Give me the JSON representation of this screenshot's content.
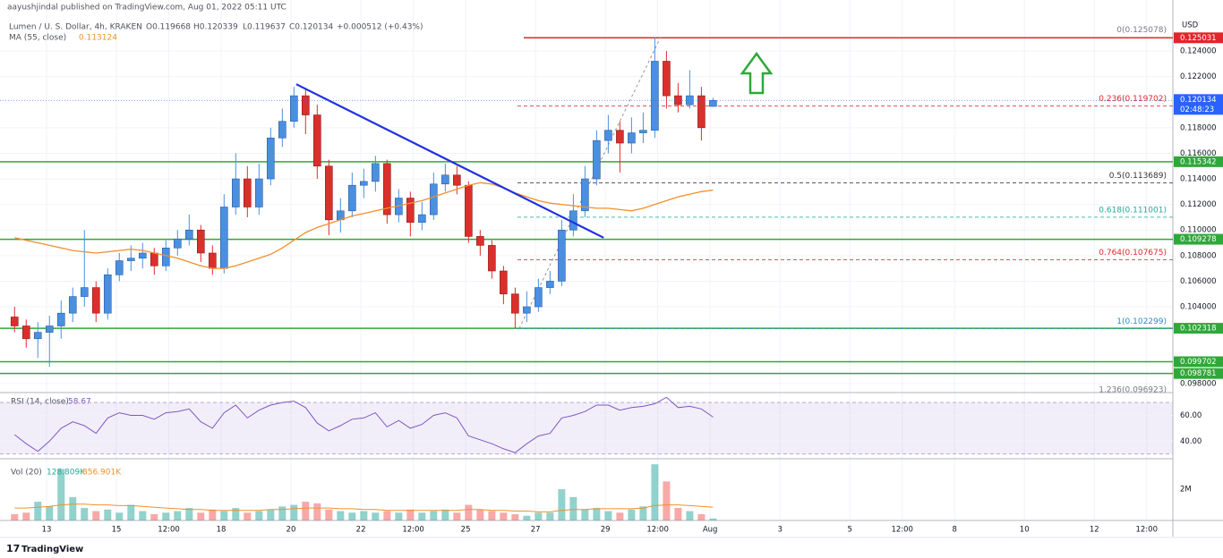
{
  "chart_data": {
    "type": "candlestick",
    "publisher": "aayushjindal published on TradingView.com, Aug 01, 2022 05:11 UTC",
    "title": "Lumen / U. S. Dollar, 4h, KRAKEN",
    "ohlc": [
      "O0.119668",
      "H0.120339",
      "L0.119637",
      "C0.120134"
    ],
    "change": "+0.000512 (+0.43%)",
    "ma_name": "MA (55, close)",
    "y_unit": "USD",
    "footer": "TradingView",
    "up_color": "#4a8fe0",
    "down_color": "#d9302c",
    "ma_color": "#f0902a",
    "level_color": "#2fa83a",
    "resistance_color": "#e0262b",
    "trend_color": "#2130e0",
    "xlim": [
      -1.5,
      200
    ],
    "xticks": [
      {
        "value": 6.5,
        "label": "13"
      },
      {
        "value": 18.5,
        "label": "15"
      },
      {
        "value": 27.5,
        "label": "12:00"
      },
      {
        "value": 36.5,
        "label": "18"
      },
      {
        "value": 48.5,
        "label": "20"
      },
      {
        "value": 60.5,
        "label": "22"
      },
      {
        "value": 69.5,
        "label": "12:00"
      },
      {
        "value": 78.5,
        "label": "25"
      },
      {
        "value": 90.5,
        "label": "27"
      },
      {
        "value": 102.5,
        "label": "29"
      },
      {
        "value": 111.5,
        "label": "12:00"
      },
      {
        "value": 120.5,
        "label": "Aug"
      },
      {
        "value": 132.5,
        "label": "3"
      },
      {
        "value": 144.5,
        "label": "5"
      },
      {
        "value": 153.5,
        "label": "12:00"
      },
      {
        "value": 162.5,
        "label": "8"
      },
      {
        "value": 174.5,
        "label": "10"
      },
      {
        "value": 186.5,
        "label": "12"
      },
      {
        "value": 195.5,
        "label": "12:00"
      }
    ],
    "ylim": [
      0.09736,
      0.12645
    ],
    "yticks": [
      {
        "value": 0.124,
        "label": "0.124000"
      },
      {
        "value": 0.122,
        "label": "0.122000"
      },
      {
        "value": 0.118,
        "label": "0.118000"
      },
      {
        "value": 0.116,
        "label": "0.116000"
      },
      {
        "value": 0.114,
        "label": "0.114000"
      },
      {
        "value": 0.112,
        "label": "0.112000"
      },
      {
        "value": 0.11,
        "label": "0.110000"
      },
      {
        "value": 0.108,
        "label": "0.108000"
      },
      {
        "value": 0.106,
        "label": "0.106000"
      },
      {
        "value": 0.104,
        "label": "0.104000"
      },
      {
        "value": 0.098,
        "label": "0.098000"
      }
    ],
    "grid": true,
    "x": [
      1,
      3,
      5,
      7,
      9,
      11,
      13,
      15,
      17,
      19,
      21,
      23,
      25,
      27,
      29,
      31,
      33,
      35,
      37,
      39,
      41,
      43,
      45,
      47,
      49,
      51,
      53,
      55,
      57,
      59,
      61,
      63,
      65,
      67,
      69,
      71,
      73,
      75,
      77,
      79,
      81,
      83,
      85,
      87,
      89,
      91,
      93,
      95,
      97,
      99,
      101,
      103,
      105,
      107,
      109,
      111,
      113,
      115,
      117,
      119,
      121
    ],
    "open": [
      0.1032,
      0.1025,
      0.1015,
      0.102,
      0.1025,
      0.1035,
      0.1048,
      0.1055,
      0.1035,
      0.1065,
      0.1076,
      0.1078,
      0.1082,
      0.1072,
      0.1086,
      0.1093,
      0.11,
      0.1082,
      0.107,
      0.1118,
      0.114,
      0.1118,
      0.114,
      0.1172,
      0.1185,
      0.1205,
      0.119,
      0.115,
      0.1108,
      0.1115,
      0.1135,
      0.1138,
      0.1152,
      0.1112,
      0.1125,
      0.1106,
      0.1112,
      0.1136,
      0.1143,
      0.1135,
      0.1095,
      0.1088,
      0.1068,
      0.105,
      0.1035,
      0.104,
      0.1055,
      0.106,
      0.11,
      0.1115,
      0.114,
      0.117,
      0.1178,
      0.1168,
      0.1176,
      0.1178,
      0.1232,
      0.1205,
      0.1198,
      0.1205,
      0.119668
    ],
    "high": [
      0.104,
      0.103,
      0.1028,
      0.1033,
      0.1045,
      0.1055,
      0.11,
      0.106,
      0.107,
      0.1082,
      0.1088,
      0.109,
      0.1086,
      0.1092,
      0.11,
      0.1112,
      0.1104,
      0.1088,
      0.1128,
      0.116,
      0.115,
      0.1152,
      0.118,
      0.1195,
      0.1212,
      0.121,
      0.1198,
      0.1155,
      0.1125,
      0.1145,
      0.1148,
      0.1158,
      0.1155,
      0.1132,
      0.113,
      0.1122,
      0.1145,
      0.1152,
      0.115,
      0.1138,
      0.11,
      0.1092,
      0.1072,
      0.1055,
      0.1052,
      0.1062,
      0.1068,
      0.1108,
      0.1128,
      0.115,
      0.1178,
      0.119,
      0.1185,
      0.1188,
      0.1192,
      0.12508,
      0.124,
      0.1215,
      0.1225,
      0.1212,
      0.120339
    ],
    "low": [
      0.102,
      0.1008,
      0.1,
      0.0993,
      0.1015,
      0.1028,
      0.104,
      0.1028,
      0.103,
      0.106,
      0.1068,
      0.107,
      0.1065,
      0.1068,
      0.108,
      0.1088,
      0.1075,
      0.1065,
      0.1066,
      0.1112,
      0.111,
      0.1112,
      0.1135,
      0.1165,
      0.118,
      0.1175,
      0.114,
      0.1096,
      0.1098,
      0.111,
      0.1125,
      0.113,
      0.1105,
      0.1106,
      0.1095,
      0.11,
      0.1108,
      0.113,
      0.1128,
      0.109,
      0.108,
      0.1062,
      0.1042,
      0.1023,
      0.1028,
      0.1036,
      0.105,
      0.1056,
      0.1095,
      0.111,
      0.1135,
      0.116,
      0.1145,
      0.116,
      0.1168,
      0.1172,
      0.1195,
      0.1192,
      0.1195,
      0.117,
      0.119637
    ],
    "close": [
      0.1025,
      0.1015,
      0.102,
      0.1025,
      0.1035,
      0.1048,
      0.1055,
      0.1035,
      0.1065,
      0.1076,
      0.1078,
      0.1082,
      0.1072,
      0.1086,
      0.1093,
      0.11,
      0.1082,
      0.107,
      0.1118,
      0.114,
      0.1118,
      0.114,
      0.1172,
      0.1185,
      0.1205,
      0.119,
      0.115,
      0.1108,
      0.1115,
      0.1135,
      0.1138,
      0.1152,
      0.1112,
      0.1125,
      0.1106,
      0.1112,
      0.1136,
      0.1143,
      0.1135,
      0.1095,
      0.1088,
      0.1068,
      0.105,
      0.1035,
      0.104,
      0.1055,
      0.106,
      0.11,
      0.1115,
      0.114,
      0.117,
      0.1178,
      0.1168,
      0.1176,
      0.1178,
      0.1232,
      0.1205,
      0.1198,
      0.1205,
      0.118,
      0.120134
    ],
    "ma": [
      0.1094,
      0.1092,
      0.109,
      0.1088,
      0.1086,
      0.1084,
      0.1083,
      0.1082,
      0.1083,
      0.1084,
      0.1085,
      0.1084,
      0.1082,
      0.108,
      0.1078,
      0.1075,
      0.1072,
      0.107,
      0.107,
      0.1072,
      0.1075,
      0.1078,
      0.1081,
      0.1086,
      0.1092,
      0.1098,
      0.1102,
      0.1105,
      0.1108,
      0.1111,
      0.1113,
      0.1115,
      0.1117,
      0.1119,
      0.1121,
      0.1123,
      0.1126,
      0.1129,
      0.1132,
      0.1135,
      0.1137,
      0.1136,
      0.1133,
      0.1129,
      0.1126,
      0.1123,
      0.1121,
      0.112,
      0.1119,
      0.1118,
      0.1117,
      0.1117,
      0.1116,
      0.1115,
      0.1117,
      0.112,
      0.1123,
      0.1126,
      0.1128,
      0.113,
      0.113124
    ],
    "current": {
      "price": 0.120134,
      "label": "0.120134",
      "countdown": "02:48:23",
      "color": "#2962ff"
    },
    "resistance": {
      "value": 0.125031,
      "label": "0.125031"
    },
    "levels": [
      {
        "value": 0.115342,
        "label": "0.115342"
      },
      {
        "value": 0.109278,
        "label": "0.109278"
      },
      {
        "value": 0.102318,
        "label": "0.102318"
      },
      {
        "value": 0.099702,
        "label": "0.099702"
      },
      {
        "value": 0.098781,
        "label": "0.098781"
      }
    ],
    "fib": [
      {
        "value": 0.125078,
        "label": "0(0.125078)",
        "color": "#787b86"
      },
      {
        "value": 0.119702,
        "label": "0.236(0.119702)",
        "color": "#e0262b"
      },
      {
        "value": 0.113689,
        "label": "0.5(0.113689)",
        "color": "#333333"
      },
      {
        "value": 0.111001,
        "label": "0.618(0.111001)",
        "color": "#26a69a"
      },
      {
        "value": 0.107675,
        "label": "0.764(0.107675)",
        "color": "#e0262b"
      },
      {
        "value": 0.102299,
        "label": "1(0.102299)",
        "color": "#2e8bc0"
      },
      {
        "value": 0.096923,
        "label": "1.236(0.096923)",
        "color": "#787b86"
      }
    ],
    "fib_anchor": {
      "x": [
        87.7,
        112.0
      ],
      "y": [
        0.102299,
        0.125078
      ]
    },
    "trendline": {
      "x": [
        49.4,
        102.2
      ],
      "y": [
        0.1214,
        0.1094
      ]
    },
    "rsi": {
      "name": "RSI (14, close)",
      "color": "#7e57c2",
      "ylim": [
        27,
        77
      ],
      "band": [
        30,
        70
      ],
      "yticks": [
        {
          "value": 60,
          "label": "60.00"
        },
        {
          "value": 40,
          "label": "40.00"
        }
      ],
      "values": [
        45,
        38,
        32,
        40,
        50,
        55,
        52,
        46,
        58,
        62,
        60,
        60,
        57,
        62,
        63,
        65,
        55,
        50,
        62,
        68,
        58,
        64,
        68,
        70,
        71,
        66,
        54,
        48,
        52,
        57,
        58,
        62,
        51,
        56,
        50,
        53,
        60,
        62,
        58,
        44,
        41,
        38,
        34,
        31,
        38,
        44,
        46,
        58,
        60,
        63,
        68,
        68,
        64,
        66,
        67,
        69,
        74,
        66,
        67,
        65,
        58.67
      ]
    },
    "volume": {
      "name": "Vol (20)",
      "up_color": "rgba(38,166,154,0.5)",
      "down_color": "rgba(239,83,80,0.5)",
      "ma_color": "#f0902a",
      "ylim": [
        0,
        3900000
      ],
      "yticks": [
        {
          "value": 2000000,
          "label": "2M"
        }
      ],
      "last_label": "128.809K",
      "ma_label": "856.901K",
      "values": [
        400000,
        500000,
        1200000,
        900000,
        3300000,
        1500000,
        800000,
        600000,
        700000,
        500000,
        1000000,
        600000,
        400000,
        500000,
        600000,
        800000,
        500000,
        700000,
        600000,
        800000,
        500000,
        600000,
        700000,
        900000,
        1000000,
        1200000,
        1100000,
        700000,
        600000,
        500000,
        600000,
        500000,
        600000,
        500000,
        700000,
        500000,
        600000,
        700000,
        500000,
        1000000,
        700000,
        600000,
        500000,
        400000,
        300000,
        500000,
        500000,
        2000000,
        1500000,
        700000,
        800000,
        600000,
        500000,
        700000,
        900000,
        3600000,
        2500000,
        800000,
        600000,
        400000,
        128809
      ],
      "ma": [
        800000,
        800000,
        850000,
        900000,
        1000000,
        1050000,
        1050000,
        1000000,
        1000000,
        950000,
        950000,
        900000,
        850000,
        800000,
        750000,
        700000,
        700000,
        650000,
        650000,
        650000,
        650000,
        650000,
        700000,
        700000,
        750000,
        800000,
        800000,
        800000,
        750000,
        750000,
        700000,
        700000,
        650000,
        650000,
        650000,
        650000,
        650000,
        650000,
        650000,
        700000,
        700000,
        650000,
        650000,
        600000,
        600000,
        550000,
        550000,
        650000,
        700000,
        700000,
        750000,
        750000,
        750000,
        750000,
        800000,
        950000,
        1000000,
        1000000,
        950000,
        900000,
        856901
      ]
    }
  }
}
